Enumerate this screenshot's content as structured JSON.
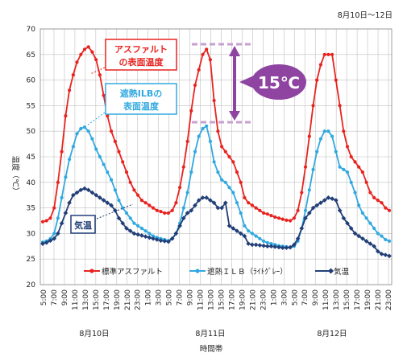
{
  "header": {
    "date_range": "8月10日～12日"
  },
  "callouts": {
    "asphalt_line1": "アスファルト",
    "asphalt_line2": "の表面温度",
    "ilb_line1": "遮熱ILBの",
    "ilb_line2": "表面温度",
    "air": "気温",
    "diff": "15℃"
  },
  "colors": {
    "asphalt": "#e8231f",
    "ilb": "#31a9df",
    "air": "#223f78",
    "diff_bar": "#8e44a0",
    "diff_dash": "#c7a0d0",
    "grid": "#bfbfbf"
  },
  "chart_data": {
    "type": "line",
    "ylabel": "温度（℃）",
    "xlabel": "時間帯",
    "ylim": [
      20,
      70
    ],
    "yticks": [
      20,
      25,
      30,
      35,
      40,
      45,
      50,
      55,
      60,
      65,
      70
    ],
    "x_tick_labels": [
      "5:00",
      "7:00",
      "9:00",
      "11:00",
      "13:00",
      "15:00",
      "17:00",
      "19:00",
      "21:00",
      "23:00",
      "1:00",
      "3:00",
      "5:00",
      "7:00",
      "9:00",
      "11:00",
      "13:00",
      "15:00",
      "17:00",
      "19:00",
      "21:00",
      "23:00",
      "1:00",
      "3:00",
      "5:00",
      "7:00",
      "9:00",
      "11:00",
      "13:00",
      "15:00",
      "17:00",
      "19:00",
      "21:00",
      "23:00"
    ],
    "day_labels": [
      "8月10日",
      "8月11日",
      "8月12日"
    ],
    "grid": true,
    "legend_position": "bottom-inside",
    "series": [
      {
        "name": "標準アスファルト",
        "values": [
          32.3,
          32.5,
          33.0,
          35.0,
          40.0,
          46.0,
          53.0,
          58.0,
          61.0,
          63.5,
          65.0,
          66.0,
          66.5,
          65.5,
          64.0,
          61.0,
          57.0,
          53.0,
          50.0,
          48.0,
          46.0,
          44.0,
          42.0,
          40.0,
          38.5,
          37.5,
          36.5,
          36.0,
          35.5,
          35.0,
          34.5,
          34.3,
          34.0,
          34.0,
          34.5,
          36.0,
          39.0,
          43.0,
          48.0,
          54.0,
          59.0,
          62.0,
          65.0,
          66.0,
          64.0,
          56.0,
          50.0,
          47.0,
          46.0,
          45.0,
          44.0,
          42.0,
          40.0,
          37.0,
          36.0,
          35.5,
          35.0,
          34.5,
          34.0,
          33.8,
          33.5,
          33.2,
          33.0,
          32.8,
          32.6,
          32.5,
          33.0,
          34.5,
          38.0,
          43.0,
          49.0,
          55.0,
          60.0,
          63.0,
          65.0,
          65.0,
          65.0,
          60.0,
          55.0,
          50.0,
          47.0,
          45.0,
          44.0,
          43.0,
          42.0,
          40.0,
          38.0,
          37.0,
          36.5,
          36.0,
          35.0,
          34.5
        ]
      },
      {
        "name": "遮熱ＩＬＢ（ﾗｲﾄｸﾞﾚｰ）",
        "values": [
          28.3,
          28.5,
          29.0,
          30.0,
          33.0,
          37.0,
          41.0,
          44.5,
          47.0,
          49.5,
          50.5,
          50.8,
          50.0,
          48.5,
          46.5,
          45.0,
          43.5,
          42.0,
          40.5,
          38.5,
          36.5,
          35.0,
          34.0,
          33.0,
          32.0,
          31.5,
          31.0,
          30.5,
          30.0,
          29.5,
          29.2,
          29.0,
          28.8,
          28.6,
          29.0,
          30.0,
          32.0,
          35.0,
          38.0,
          42.0,
          46.0,
          49.0,
          50.5,
          51.0,
          48.0,
          44.0,
          42.0,
          40.5,
          40.0,
          39.0,
          38.0,
          36.0,
          34.0,
          31.5,
          30.5,
          30.0,
          29.5,
          29.0,
          28.5,
          28.2,
          28.0,
          27.8,
          27.6,
          27.5,
          27.4,
          27.3,
          27.5,
          28.5,
          31.0,
          34.5,
          38.5,
          42.5,
          46.0,
          48.5,
          50.0,
          50.0,
          49.0,
          46.0,
          43.0,
          42.5,
          42.0,
          40.0,
          38.0,
          35.5,
          34.0,
          33.0,
          32.0,
          31.0,
          30.0,
          29.5,
          28.8,
          28.5
        ]
      },
      {
        "name": "気温",
        "values": [
          28.0,
          28.2,
          28.6,
          29.0,
          30.0,
          32.0,
          34.0,
          36.0,
          37.5,
          38.0,
          38.5,
          38.8,
          38.5,
          38.0,
          37.5,
          37.0,
          36.5,
          36.0,
          35.5,
          34.5,
          33.0,
          32.0,
          31.0,
          30.5,
          30.0,
          29.8,
          29.6,
          29.4,
          29.2,
          29.0,
          28.8,
          28.6,
          28.5,
          28.4,
          29.0,
          30.0,
          31.5,
          33.0,
          34.0,
          34.5,
          35.5,
          36.5,
          37.0,
          37.0,
          36.5,
          36.0,
          35.0,
          35.0,
          36.0,
          31.5,
          31.0,
          30.5,
          30.0,
          29.5,
          28.0,
          27.8,
          27.8,
          27.7,
          27.6,
          27.5,
          27.5,
          27.4,
          27.3,
          27.2,
          27.2,
          27.3,
          27.8,
          29.0,
          31.0,
          33.0,
          34.0,
          35.0,
          35.5,
          36.0,
          36.5,
          37.0,
          36.8,
          36.5,
          34.5,
          33.0,
          32.0,
          31.0,
          30.0,
          29.5,
          29.0,
          28.5,
          28.0,
          27.5,
          26.5,
          26.0,
          25.8,
          25.6
        ]
      }
    ]
  }
}
